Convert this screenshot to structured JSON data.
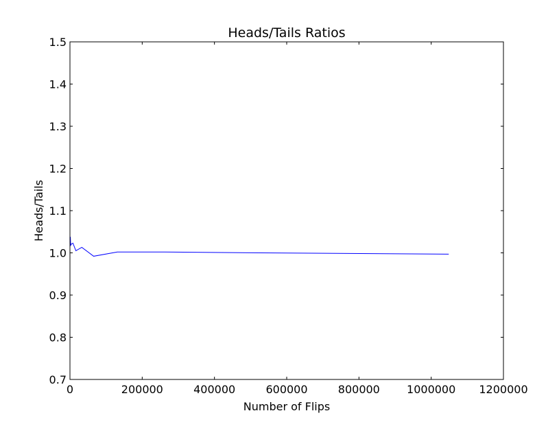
{
  "chart_data": {
    "type": "line",
    "title": "Heads/Tails Ratios",
    "xlabel": "Number of Flips",
    "ylabel": "Heads/Tails",
    "xlim": [
      0,
      1200000
    ],
    "ylim": [
      0.7,
      1.5
    ],
    "xticks": [
      0,
      200000,
      400000,
      600000,
      800000,
      1000000,
      1200000
    ],
    "xtick_labels": [
      "0",
      "200000",
      "400000",
      "600000",
      "800000",
      "1000000",
      "1200000"
    ],
    "yticks": [
      0.7,
      0.8,
      0.9,
      1.0,
      1.1,
      1.2,
      1.3,
      1.4,
      1.5
    ],
    "ytick_labels": [
      "0.7",
      "0.8",
      "0.9",
      "1.0",
      "1.1",
      "1.2",
      "1.3",
      "1.4",
      "1.5"
    ],
    "grid": false,
    "series": [
      {
        "color": "#0000ff",
        "x": [
          1024,
          2048,
          4096,
          8192,
          16384,
          32768,
          65536,
          131072,
          262144,
          524288,
          1048576
        ],
        "y": [
          1.038,
          1.018,
          1.021,
          1.023,
          1.005,
          1.013,
          0.992,
          1.002,
          1.002,
          1.0,
          0.997
        ]
      }
    ]
  }
}
